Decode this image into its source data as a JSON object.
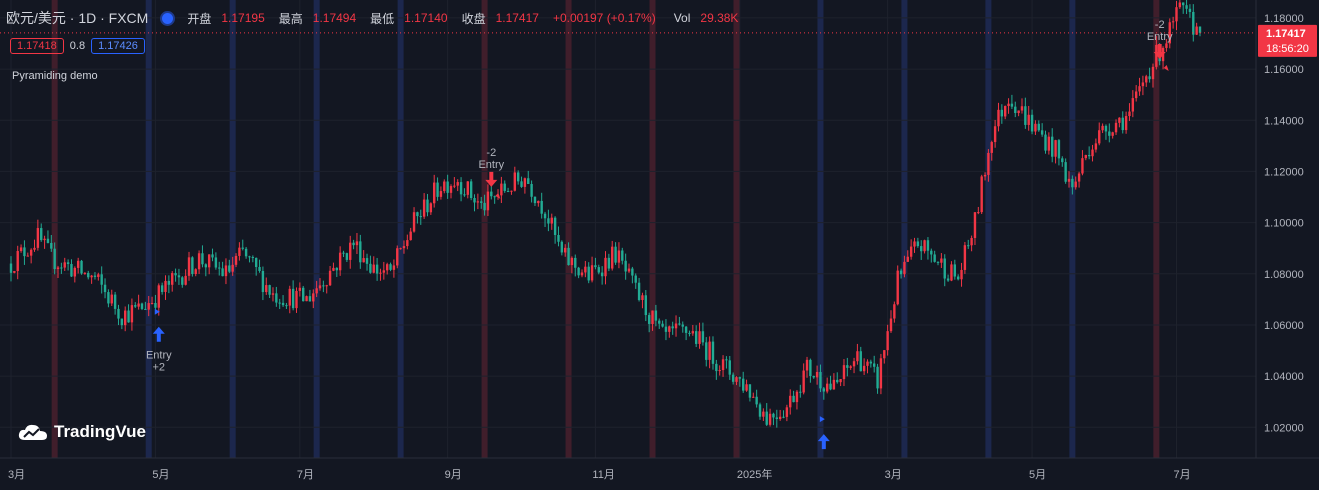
{
  "header": {
    "symbol": "欧元/美元 · 1D · FXCM",
    "open_label": "开盘",
    "open": "1.17195",
    "high_label": "最高",
    "high": "1.17494",
    "low_label": "最低",
    "low": "1.17140",
    "close_label": "收盘",
    "close": "1.17417",
    "change": "+0.00197 (+0.17%)",
    "vol_label": "Vol",
    "vol": "29.38K"
  },
  "quote": {
    "bid": "1.17418",
    "spread": "0.8",
    "ask": "1.17426"
  },
  "study_name": "Pyramiding demo",
  "logo_text": "TradingVue",
  "price_badge": {
    "price": "1.17417",
    "countdown": "18:56:20"
  },
  "colors": {
    "background": "#131722",
    "up": "#f23645",
    "down": "#22ab94",
    "long_arrow": "#2962ff",
    "short_arrow": "#f23645"
  },
  "chart_data": {
    "type": "candlestick",
    "title": "",
    "y_ticks": [
      "1.02000",
      "1.04000",
      "1.06000",
      "1.08000",
      "1.10000",
      "1.12000",
      "1.14000",
      "1.16000",
      "1.18000"
    ],
    "ylim": [
      1.008,
      1.187
    ],
    "x_tick_labels": [
      {
        "label": "3月",
        "bar": 0
      },
      {
        "label": "5月",
        "bar": 43
      },
      {
        "label": "7月",
        "bar": 86
      },
      {
        "label": "9月",
        "bar": 130
      },
      {
        "label": "11月",
        "bar": 174
      },
      {
        "label": "2025年",
        "bar": 217
      },
      {
        "label": "3月",
        "bar": 261
      },
      {
        "label": "5月",
        "bar": 304
      },
      {
        "label": "7月",
        "bar": 347
      }
    ],
    "anchors": [
      [
        0,
        1.084
      ],
      [
        8,
        1.094
      ],
      [
        12,
        1.086
      ],
      [
        25,
        1.078
      ],
      [
        33,
        1.064
      ],
      [
        38,
        1.066
      ],
      [
        44,
        1.072
      ],
      [
        56,
        1.086
      ],
      [
        64,
        1.08
      ],
      [
        69,
        1.088
      ],
      [
        78,
        1.072
      ],
      [
        88,
        1.07
      ],
      [
        102,
        1.092
      ],
      [
        108,
        1.082
      ],
      [
        113,
        1.08
      ],
      [
        120,
        1.1
      ],
      [
        128,
        1.115
      ],
      [
        133,
        1.117
      ],
      [
        140,
        1.106
      ],
      [
        146,
        1.112
      ],
      [
        153,
        1.118
      ],
      [
        159,
        1.105
      ],
      [
        164,
        1.087
      ],
      [
        172,
        1.079
      ],
      [
        180,
        1.088
      ],
      [
        186,
        1.073
      ],
      [
        194,
        1.055
      ],
      [
        202,
        1.058
      ],
      [
        211,
        1.045
      ],
      [
        219,
        1.036
      ],
      [
        225,
        1.024
      ],
      [
        231,
        1.028
      ],
      [
        237,
        1.043
      ],
      [
        245,
        1.035
      ],
      [
        252,
        1.048
      ],
      [
        258,
        1.038
      ],
      [
        264,
        1.077
      ],
      [
        270,
        1.092
      ],
      [
        275,
        1.086
      ],
      [
        282,
        1.078
      ],
      [
        287,
        1.1
      ],
      [
        292,
        1.135
      ],
      [
        297,
        1.15
      ],
      [
        304,
        1.138
      ],
      [
        311,
        1.128
      ],
      [
        316,
        1.113
      ],
      [
        321,
        1.13
      ],
      [
        327,
        1.138
      ],
      [
        333,
        1.142
      ],
      [
        338,
        1.158
      ],
      [
        344,
        1.172
      ],
      [
        348,
        1.183
      ],
      [
        354,
        1.174
      ]
    ],
    "bar_count": 355,
    "last_close": 1.17417,
    "background_bands": [
      {
        "bar": 13,
        "color": "red"
      },
      {
        "bar": 41,
        "color": "blue"
      },
      {
        "bar": 66,
        "color": "blue"
      },
      {
        "bar": 91,
        "color": "blue"
      },
      {
        "bar": 116,
        "color": "blue"
      },
      {
        "bar": 141,
        "color": "red"
      },
      {
        "bar": 166,
        "color": "red"
      },
      {
        "bar": 191,
        "color": "red"
      },
      {
        "bar": 216,
        "color": "red"
      },
      {
        "bar": 241,
        "color": "blue"
      },
      {
        "bar": 266,
        "color": "blue"
      },
      {
        "bar": 291,
        "color": "blue"
      },
      {
        "bar": 316,
        "color": "blue"
      },
      {
        "bar": 341,
        "color": "red"
      }
    ],
    "signals": [
      {
        "bar": 44,
        "price": 1.064,
        "side": "long",
        "text1": "Entry",
        "text2": "+2"
      },
      {
        "bar": 143,
        "price": 1.112,
        "side": "short",
        "text1": "-2",
        "text2": "Entry"
      },
      {
        "bar": 242,
        "price": 1.022,
        "side": "long",
        "text1": "",
        "text2": ""
      },
      {
        "bar": 342,
        "price": 1.162,
        "side": "short",
        "text1": "-2",
        "text2": "Entry"
      }
    ]
  }
}
